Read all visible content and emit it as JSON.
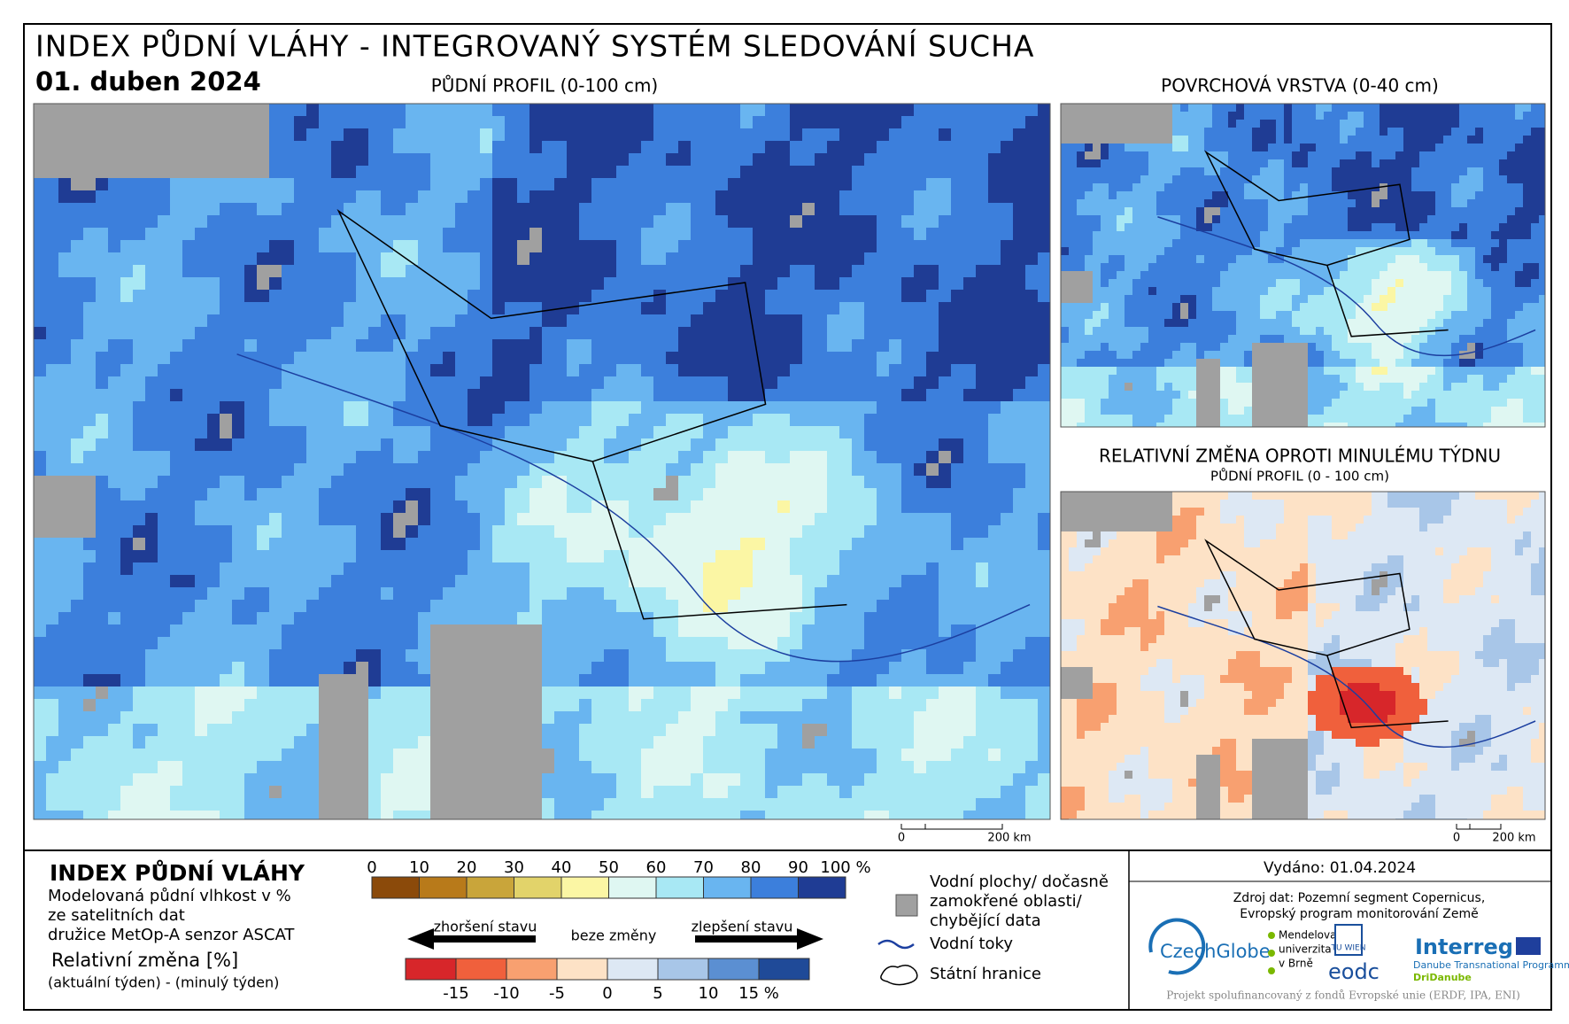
{
  "header": {
    "title": "INDEX PŮDNÍ VLÁHY - INTEGROVANÝ SYSTÉM SLEDOVÁNÍ SUCHA",
    "date": "01. duben 2024"
  },
  "maps": [
    {
      "title": "PŮDNÍ PROFIL (0-100 cm)",
      "scale": [
        "0",
        "200 km"
      ]
    },
    {
      "title": "POVRCHOVÁ VRSTVA (0-40 cm)"
    },
    {
      "title": "RELATIVNÍ ZMĚNA OPROTI MINULÉMU TÝDNU",
      "subtitle": "PŮDNÍ PROFIL (0 - 100 cm)",
      "scale": [
        "0",
        "200 km"
      ]
    }
  ],
  "legend": {
    "title": "INDEX PŮDNÍ VLÁHY",
    "description": [
      "Modelovaná půdní vlhkost v %",
      "ze satelitních dat",
      "družice MetOp-A senzor ASCAT"
    ],
    "relative_title": "Relativní změna [%]",
    "relative_formula": "(aktuální týden) - (minulý týden)",
    "scale_labels": [
      "0",
      "10",
      "20",
      "30",
      "40",
      "50",
      "60",
      "70",
      "80",
      "90",
      "100 %"
    ],
    "arrows": [
      "zhoršení stavu",
      "beze změny",
      "zlepšení stavu"
    ],
    "change_labels": [
      "-15",
      "-10",
      "-5",
      "0",
      "5",
      "10",
      "15 %"
    ],
    "water": [
      "Vodní plochy/ dočasně",
      "zamokřené oblasti/",
      "chybějící data"
    ],
    "rivers": "Vodní toky",
    "borders": "Státní hranice"
  },
  "footer": {
    "issued": "Vydáno: 01.04.2024",
    "source": [
      "Zdroj dat: Pozemní segment Copernicus,",
      "Evropský program monitorování Země"
    ],
    "logos": [
      "CzechGlobe",
      "Mendelova",
      "univerzita",
      "v Brně",
      "TU WIEN",
      "eodc",
      "Interreg",
      "Danube Transnational Programme",
      "DriDanube"
    ],
    "funding": "Projekt spolufinancovaný z fondů Evropské unie (ERDF, IPA, ENI)"
  }
}
